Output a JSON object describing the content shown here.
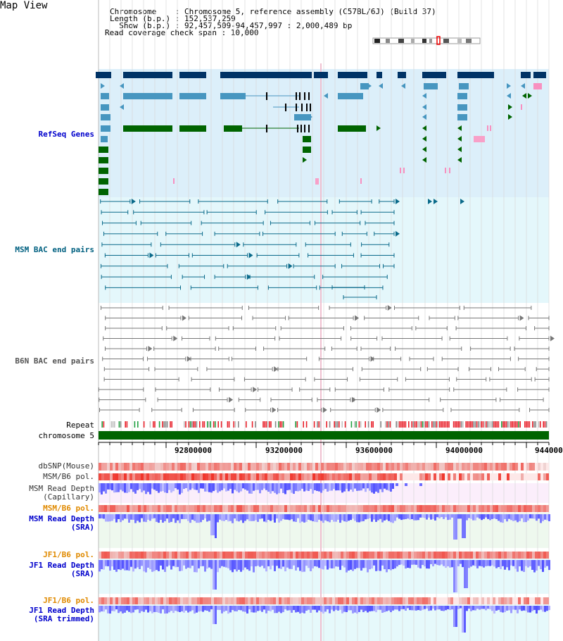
{
  "page": {
    "title": "Map View"
  },
  "header": {
    "chromosome_line": "Chromosome    : Chromosome 5, reference assembly (C57BL/6J) (Build 37)",
    "length_line": "Length (b.p.) : 152,537,259",
    "show_line": "  Show (b.p.) : 92,457,509-94,457,997 : 2,000,489 bp",
    "coverage_line": "Read coverage check span : 10,000"
  },
  "tracks": {
    "refseq": "RefSeq Genes",
    "msm_bac": "MSM BAC end pairs",
    "b6n_bac": "B6N BAC end pairs",
    "repeat": "Repeat",
    "chromosome": "chromosome 5",
    "dbsnp": "dbSNP(Mouse)",
    "msm_b6_pol_1": "MSM/B6 pol.",
    "msm_depth_cap_1": "MSM Read Depth",
    "msm_depth_cap_2": "(Capillary)",
    "msm_b6_pol_2": "MSM/B6 pol.",
    "msm_depth_sra_1": "MSM Read Depth",
    "msm_depth_sra_2": "(SRA)",
    "jf1_b6_pol_1": "JF1/B6 pol.",
    "jf1_depth_sra_1": "JF1 Read Depth",
    "jf1_depth_sra_2": "(SRA)",
    "jf1_b6_pol_2": "JF1/B6 pol.",
    "jf1_depth_trim_1": "JF1 Read Depth",
    "jf1_depth_trim_2": "(SRA trimmed)"
  },
  "axis": {
    "ticks": [
      "92800000",
      "93200000",
      "93600000",
      "94000000",
      "944000"
    ]
  },
  "colors": {
    "label_blue": "#0000cc",
    "label_teal": "#006080",
    "label_gray": "#555555",
    "label_orange": "#e08a00",
    "refseq_bg": "#dceffa",
    "msm_bg": "#e4f7fb",
    "gene_dark": "#003366",
    "gene_mid": "#4796c0",
    "gene_green": "#006400",
    "chrom_green": "#006400"
  }
}
